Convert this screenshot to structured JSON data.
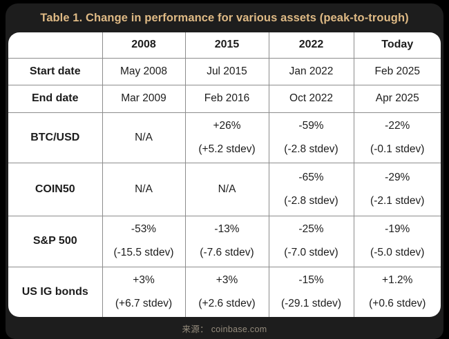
{
  "title": "Table 1. Change in performance for various assets (peak-to-trough)",
  "source_label": "来源： coinbase.com",
  "colors": {
    "page_background": "#000000",
    "frame_background": "#1d1d1d",
    "card_background": "#ffffff",
    "title_text": "#dfba85",
    "grid_line": "#8c8c8c",
    "table_text": "#1c1c1c",
    "source_text": "#958c7d"
  },
  "chart_data": {
    "type": "table",
    "title": "Table 1. Change in performance for various assets (peak-to-trough)",
    "columns": [
      "",
      "2008",
      "2015",
      "2022",
      "Today"
    ],
    "rows": [
      {
        "label": "Start date",
        "cells": [
          {
            "main": "May 2008"
          },
          {
            "main": "Jul 2015"
          },
          {
            "main": "Jan 2022"
          },
          {
            "main": "Feb 2025"
          }
        ]
      },
      {
        "label": "End date",
        "cells": [
          {
            "main": "Mar 2009"
          },
          {
            "main": "Feb 2016"
          },
          {
            "main": "Oct 2022"
          },
          {
            "main": "Apr 2025"
          }
        ]
      },
      {
        "label": "BTC/USD",
        "cells": [
          {
            "main": "N/A"
          },
          {
            "main": "+26%",
            "sub": "(+5.2 stdev)"
          },
          {
            "main": "-59%",
            "sub": "(-2.8 stdev)"
          },
          {
            "main": "-22%",
            "sub": "(-0.1 stdev)"
          }
        ]
      },
      {
        "label": "COIN50",
        "cells": [
          {
            "main": "N/A"
          },
          {
            "main": "N/A"
          },
          {
            "main": "-65%",
            "sub": "(-2.8 stdev)"
          },
          {
            "main": "-29%",
            "sub": "(-2.1 stdev)"
          }
        ]
      },
      {
        "label": "S&P 500",
        "cells": [
          {
            "main": "-53%",
            "sub": "(-15.5 stdev)"
          },
          {
            "main": "-13%",
            "sub": "(-7.6 stdev)"
          },
          {
            "main": "-25%",
            "sub": "(-7.0 stdev)"
          },
          {
            "main": "-19%",
            "sub": "(-5.0 stdev)"
          }
        ]
      },
      {
        "label": "US IG bonds",
        "cells": [
          {
            "main": "+3%",
            "sub": "(+6.7 stdev)"
          },
          {
            "main": "+3%",
            "sub": "(+2.6 stdev)"
          },
          {
            "main": "-15%",
            "sub": "(-29.1 stdev)"
          },
          {
            "main": "+1.2%",
            "sub": "(+0.6 stdev)"
          }
        ]
      }
    ]
  }
}
